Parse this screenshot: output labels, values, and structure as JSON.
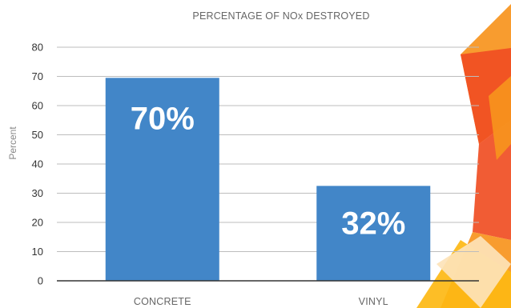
{
  "chart_data": {
    "type": "bar",
    "title": "PERCENTAGE OF NOx DESTROYED",
    "xlabel": "",
    "ylabel": "Percent",
    "categories": [
      "CONCRETE",
      "VINYL"
    ],
    "values": [
      69.5,
      32.5
    ],
    "data_labels": [
      "70%",
      "32%"
    ],
    "ylim": [
      0,
      80
    ],
    "yticks": [
      0,
      10,
      20,
      30,
      40,
      50,
      60,
      70,
      80
    ],
    "grid": true,
    "legend": "none",
    "bar_color": "#4286c8"
  },
  "decoration": {
    "accent_colors": [
      "#f04e23",
      "#f7941d",
      "#fdb913",
      "#fde3b8"
    ]
  }
}
